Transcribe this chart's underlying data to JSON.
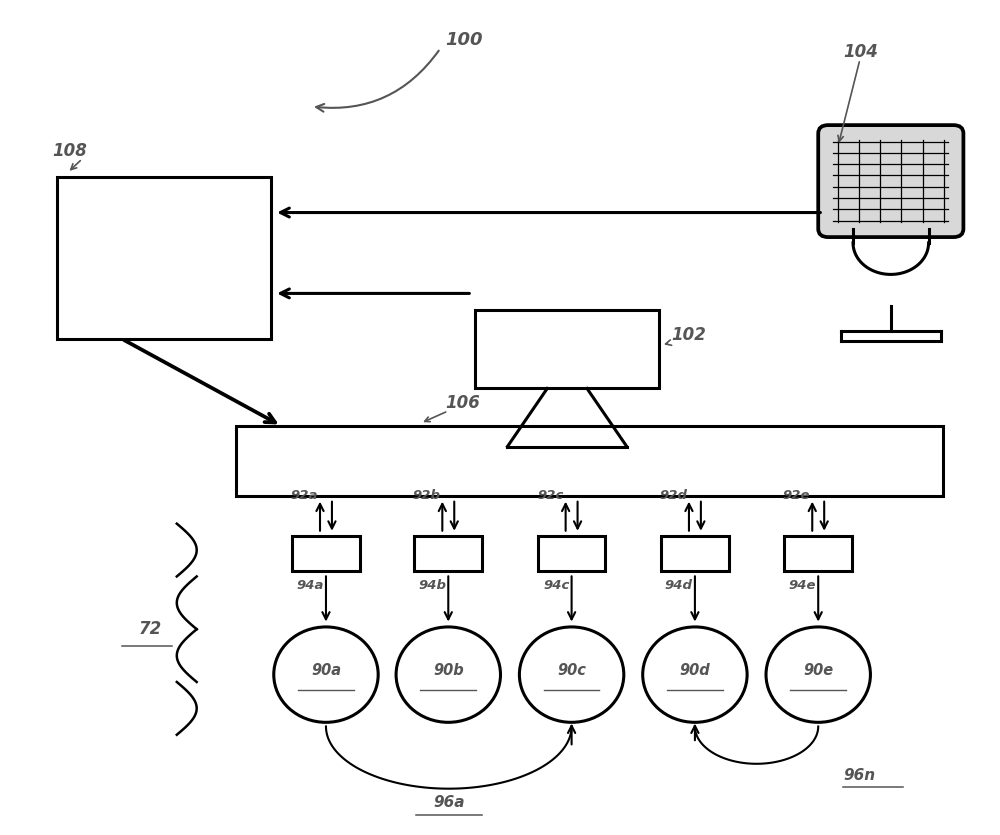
{
  "bg_color": "#ffffff",
  "line_color": "#000000",
  "label_color": "#555555",
  "fig_width": 10.0,
  "fig_height": 8.35,
  "node_labels": [
    "90a",
    "90b",
    "90c",
    "90d",
    "90e"
  ],
  "box_labels": [
    "94a",
    "94b",
    "94c",
    "94d",
    "94e"
  ],
  "arrow_labels": [
    "92a",
    "92b",
    "92c",
    "92d",
    "92e"
  ],
  "ref_100": "100",
  "ref_102": "102",
  "ref_104": "104",
  "ref_106": "106",
  "ref_108": "108",
  "ref_72": "72",
  "ref_96a": "96a",
  "ref_96n": "96n"
}
